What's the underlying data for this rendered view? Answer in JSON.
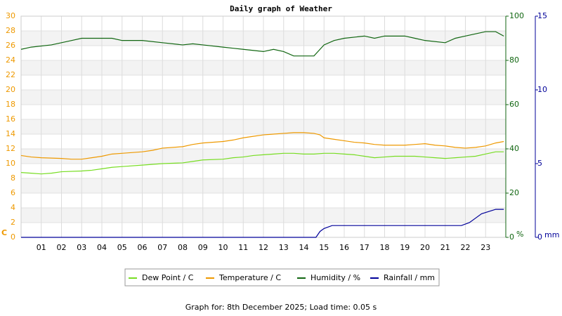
{
  "chart_data": {
    "type": "line",
    "title": "Daily graph of Weather",
    "footer": "Graph for: 8th December 2025; Load time: 0.05 s",
    "ylabel": "C",
    "y2label": "%",
    "y3label": "mm",
    "xlim": [
      0,
      24
    ],
    "xticks": [
      {
        "value": 1,
        "label": "01"
      },
      {
        "value": 2,
        "label": "02"
      },
      {
        "value": 3,
        "label": "03"
      },
      {
        "value": 4,
        "label": "04"
      },
      {
        "value": 5,
        "label": "05"
      },
      {
        "value": 6,
        "label": "06"
      },
      {
        "value": 7,
        "label": "07"
      },
      {
        "value": 8,
        "label": "08"
      },
      {
        "value": 9,
        "label": "09"
      },
      10,
      11,
      12,
      13,
      14,
      15,
      16,
      17,
      18,
      19,
      20,
      21,
      22,
      23
    ],
    "ylim": [
      0,
      30
    ],
    "yticks": [
      0,
      2,
      4,
      6,
      8,
      10,
      12,
      14,
      16,
      18,
      20,
      22,
      24,
      26,
      28,
      30
    ],
    "y2lim": [
      0,
      100
    ],
    "y2ticks": [
      0,
      20,
      40,
      60,
      80,
      100
    ],
    "y3lim": [
      0,
      15
    ],
    "y3ticks": [
      0,
      5,
      10,
      15
    ],
    "grid": true,
    "series": [
      {
        "name": "Dew Point / C",
        "color": "#77dd22",
        "axis": "y",
        "x": [
          0,
          0.5,
          1,
          1.5,
          2,
          3,
          3.5,
          4,
          4.5,
          5,
          6,
          7,
          8,
          8.5,
          9,
          10,
          10.5,
          11,
          11.5,
          12,
          12.5,
          13,
          13.5,
          14,
          14.5,
          15,
          15.5,
          16,
          16.5,
          17,
          17.5,
          18,
          18.5,
          19,
          19.5,
          20,
          20.5,
          21,
          21.5,
          22,
          22.5,
          23,
          23.5,
          23.9
        ],
        "values": [
          8.8,
          8.7,
          8.6,
          8.7,
          8.9,
          9.0,
          9.1,
          9.3,
          9.5,
          9.6,
          9.8,
          10.0,
          10.1,
          10.3,
          10.5,
          10.6,
          10.8,
          10.9,
          11.1,
          11.2,
          11.3,
          11.4,
          11.4,
          11.3,
          11.3,
          11.4,
          11.4,
          11.3,
          11.2,
          11.0,
          10.8,
          10.9,
          11.0,
          11.0,
          11.0,
          10.9,
          10.8,
          10.7,
          10.8,
          10.9,
          11.0,
          11.3,
          11.6,
          11.6
        ]
      },
      {
        "name": "Temperature / C",
        "color": "#ee9900",
        "axis": "y",
        "x": [
          0,
          0.5,
          1,
          2,
          2.5,
          3,
          3.5,
          4,
          4.5,
          5,
          6,
          6.5,
          7,
          8,
          8.5,
          9,
          10,
          10.5,
          11,
          11.5,
          12,
          12.5,
          13,
          13.5,
          14,
          14.5,
          14.8,
          15,
          15.5,
          16,
          16.5,
          17,
          17.5,
          18,
          19,
          19.5,
          20,
          20.5,
          21,
          21.5,
          22,
          22.5,
          23,
          23.5,
          23.9
        ],
        "values": [
          11.1,
          10.9,
          10.8,
          10.7,
          10.6,
          10.6,
          10.8,
          11.0,
          11.3,
          11.4,
          11.6,
          11.8,
          12.1,
          12.3,
          12.6,
          12.8,
          13.0,
          13.2,
          13.5,
          13.7,
          13.9,
          14.0,
          14.1,
          14.2,
          14.2,
          14.1,
          13.9,
          13.5,
          13.3,
          13.1,
          12.9,
          12.8,
          12.6,
          12.5,
          12.5,
          12.6,
          12.7,
          12.5,
          12.4,
          12.2,
          12.1,
          12.2,
          12.4,
          12.8,
          13.0
        ]
      },
      {
        "name": "Humidity / %",
        "color": "#116611",
        "axis": "y2",
        "x": [
          0,
          0.5,
          1.5,
          2,
          2.5,
          3,
          4,
          4.5,
          5,
          6,
          7,
          8,
          8.5,
          9,
          10,
          10.5,
          11,
          12,
          12.5,
          13,
          13.5,
          14,
          14.5,
          14.8,
          15,
          15.5,
          16,
          17,
          17.5,
          18,
          19,
          19.5,
          20,
          21,
          21.5,
          22,
          22.5,
          23,
          23.5,
          23.9
        ],
        "values": [
          85,
          86,
          87,
          88,
          89,
          90,
          90,
          90,
          89,
          89,
          88,
          87,
          87.5,
          87,
          86,
          85.5,
          85,
          84,
          85,
          84,
          82,
          82,
          82,
          85,
          87,
          89,
          90,
          91,
          90,
          91,
          91,
          90,
          89,
          88,
          90,
          91,
          92,
          93,
          93,
          91
        ]
      },
      {
        "name": "Rainfall / mm",
        "color": "#000099",
        "axis": "y3",
        "x": [
          0,
          14.6,
          14.8,
          15,
          15.4,
          21.8,
          22.2,
          22.5,
          22.8,
          23.5,
          23.9
        ],
        "values": [
          0,
          0,
          0.4,
          0.6,
          0.8,
          0.8,
          1.0,
          1.3,
          1.6,
          1.9,
          1.9
        ]
      }
    ]
  }
}
